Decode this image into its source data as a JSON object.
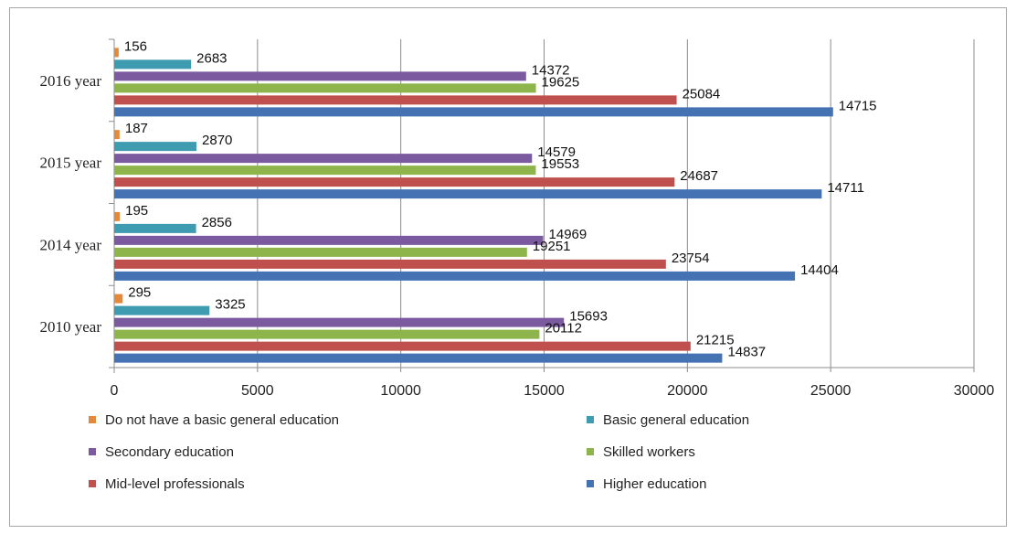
{
  "chart_data": {
    "type": "bar",
    "orientation": "horizontal",
    "title": "",
    "xlabel": "",
    "ylabel": "",
    "xlim": [
      0,
      30000
    ],
    "xticks": [
      0,
      5000,
      10000,
      15000,
      20000,
      25000,
      30000
    ],
    "categories": [
      "2016 year",
      "2015 year",
      "2014 year",
      "2010 year"
    ],
    "grid": "vertical",
    "legend_position": "bottom",
    "series": [
      {
        "name": "Do not have a basic general education",
        "color": "#E3893C",
        "values": [
          156,
          187,
          195,
          295
        ]
      },
      {
        "name": "Basic general education",
        "color": "#3F9BAF",
        "values": [
          2683,
          2870,
          2856,
          3325
        ]
      },
      {
        "name": "Secondary education",
        "color": "#7B5AA0",
        "values": [
          14372,
          14579,
          14969,
          15693
        ]
      },
      {
        "name": "Skilled workers",
        "color": "#8DB54C",
        "values": [
          14715,
          14711,
          14404,
          14837
        ]
      },
      {
        "name": "Mid-level professionals",
        "color": "#C0504D",
        "values": [
          19625,
          19553,
          19251,
          20112
        ]
      },
      {
        "name": "Higher education",
        "color": "#4472B2",
        "values": [
          25084,
          24687,
          23754,
          21215
        ]
      }
    ],
    "data_labels": [
      [
        "156",
        "2683",
        "14372",
        "19625",
        "25084",
        "14715"
      ],
      [
        "187",
        "2870",
        "14579",
        "19553",
        "24687",
        "14711"
      ],
      [
        "195",
        "2856",
        "14969",
        "19251",
        "23754",
        "14404"
      ],
      [
        "295",
        "3325",
        "15693",
        "20112",
        "21215",
        "14837"
      ]
    ]
  }
}
